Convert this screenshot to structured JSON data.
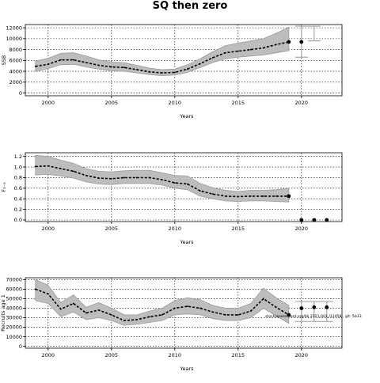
{
  "figure": {
    "title": "SQ then zero"
  },
  "chart_data": [
    {
      "type": "line",
      "ylabel": "SSB",
      "xlabel": "Years",
      "xlim": [
        1998.2,
        2023.2
      ],
      "ylim": [
        -500,
        12600
      ],
      "x_ticks": [
        2000,
        2005,
        2010,
        2015,
        2020
      ],
      "y_ticks": [
        0,
        2000,
        4000,
        6000,
        8000,
        10000,
        12000
      ],
      "y_tick_labels": [
        "0",
        "2000",
        "4000",
        "6000",
        "8000",
        "10000",
        "12000"
      ],
      "grid": true,
      "series": [
        {
          "x": [
            1999,
            2000,
            2001,
            2002,
            2003,
            2004,
            2005,
            2006,
            2007,
            2008,
            2009,
            2010,
            2011,
            2012,
            2013,
            2014,
            2015,
            2016,
            2017,
            2018,
            2019
          ],
          "values": [
            4900,
            5300,
            6100,
            6100,
            5600,
            5100,
            4800,
            4700,
            4300,
            3900,
            3700,
            3800,
            4400,
            5400,
            6500,
            7400,
            7700,
            8000,
            8300,
            8900,
            9400
          ],
          "lower": [
            4000,
            4500,
            5200,
            5300,
            4800,
            4400,
            4100,
            4000,
            3700,
            3400,
            3200,
            3300,
            3800,
            4700,
            5600,
            6300,
            6600,
            6800,
            7000,
            7400,
            7800
          ],
          "upper": [
            5900,
            6400,
            7300,
            7400,
            6800,
            6100,
            5700,
            5600,
            5100,
            4600,
            4300,
            4400,
            5200,
            6300,
            7600,
            8700,
            9200,
            9600,
            10000,
            11000,
            12100
          ]
        }
      ],
      "projection_points": [
        {
          "x": 2019,
          "y": 9400
        },
        {
          "x": 2020,
          "y": 9400
        }
      ],
      "error_bars": [
        {
          "x": 2020,
          "low": 6600,
          "high": 12300
        },
        {
          "x": 2021,
          "low": 9600,
          "high": 12300
        }
      ]
    },
    {
      "type": "line",
      "ylabel": "F₃₋₅",
      "xlabel": "Years",
      "xlim": [
        1998.2,
        2023.2
      ],
      "ylim": [
        -0.03,
        1.27
      ],
      "x_ticks": [
        2000,
        2005,
        2010,
        2015,
        2020
      ],
      "y_ticks": [
        0.0,
        0.2,
        0.4,
        0.6,
        0.8,
        1.0,
        1.2
      ],
      "y_tick_labels": [
        "0.0",
        "0.2",
        "0.4",
        "0.6",
        "0.8",
        "1.0",
        "1.2"
      ],
      "grid": true,
      "series": [
        {
          "x": [
            1999,
            2000,
            2001,
            2002,
            2003,
            2004,
            2005,
            2006,
            2007,
            2008,
            2009,
            2010,
            2011,
            2012,
            2013,
            2014,
            2015,
            2016,
            2017,
            2018,
            2019
          ],
          "values": [
            1.01,
            1.02,
            0.97,
            0.92,
            0.84,
            0.79,
            0.78,
            0.8,
            0.8,
            0.8,
            0.76,
            0.7,
            0.68,
            0.55,
            0.49,
            0.45,
            0.44,
            0.45,
            0.45,
            0.45,
            0.45
          ],
          "lower": [
            0.85,
            0.86,
            0.83,
            0.79,
            0.72,
            0.68,
            0.67,
            0.69,
            0.69,
            0.69,
            0.66,
            0.6,
            0.57,
            0.45,
            0.4,
            0.36,
            0.35,
            0.36,
            0.36,
            0.35,
            0.34
          ],
          "upper": [
            1.22,
            1.2,
            1.13,
            1.07,
            0.97,
            0.92,
            0.91,
            0.93,
            0.94,
            0.94,
            0.89,
            0.84,
            0.83,
            0.69,
            0.61,
            0.56,
            0.54,
            0.56,
            0.56,
            0.57,
            0.6
          ]
        }
      ],
      "projection_points": [
        {
          "x": 2019,
          "y": 0.45
        },
        {
          "x": 2020,
          "y": 0.0
        },
        {
          "x": 2021,
          "y": 0.0
        },
        {
          "x": 2022,
          "y": 0.0
        }
      ],
      "error_bars": []
    },
    {
      "type": "line",
      "ylabel": "Recruits age 1",
      "xlabel": "Years",
      "xlim": [
        1998.2,
        2023.2
      ],
      "ylim": [
        -2000,
        72000
      ],
      "x_ticks": [
        2000,
        2005,
        2010,
        2015,
        2020
      ],
      "y_ticks": [
        0,
        10000,
        20000,
        30000,
        40000,
        50000,
        60000,
        70000
      ],
      "y_tick_labels": [
        "0",
        "10000",
        "20000",
        "30000",
        "40000",
        "50000",
        "60000",
        "70000"
      ],
      "grid": true,
      "annotation": "stockassessment.org/lib 2021-001 /12458 , git: 5b33",
      "series": [
        {
          "x": [
            1999,
            2000,
            2001,
            2002,
            2003,
            2004,
            2005,
            2006,
            2007,
            2008,
            2009,
            2010,
            2011,
            2012,
            2013,
            2014,
            2015,
            2016,
            2017,
            2018,
            2019
          ],
          "values": [
            60000,
            55000,
            39000,
            45000,
            35000,
            38000,
            33000,
            27000,
            28000,
            31000,
            33000,
            40000,
            42000,
            40000,
            36000,
            33000,
            33000,
            37000,
            50000,
            41000,
            33000
          ],
          "lower": [
            48000,
            45000,
            31000,
            36000,
            28000,
            30000,
            27000,
            22000,
            23000,
            25000,
            27000,
            33000,
            34000,
            33000,
            29000,
            27000,
            27000,
            30000,
            40000,
            32000,
            24000
          ],
          "upper": [
            70000,
            64000,
            46000,
            54000,
            41000,
            46000,
            40000,
            33000,
            33000,
            37000,
            40000,
            48000,
            51000,
            49000,
            43000,
            40000,
            40000,
            45000,
            61000,
            51000,
            43000
          ]
        }
      ],
      "projection_points": [
        {
          "x": 2019,
          "y": 33000
        },
        {
          "x": 2020,
          "y": 40000
        },
        {
          "x": 2021,
          "y": 41000
        },
        {
          "x": 2022,
          "y": 41000
        }
      ],
      "error_bars": [
        {
          "x": 2020,
          "low": 26000,
          "high": 47000
        },
        {
          "x": 2021,
          "low": 26000,
          "high": 47000
        },
        {
          "x": 2022,
          "low": 26000,
          "high": 47000
        }
      ]
    }
  ]
}
